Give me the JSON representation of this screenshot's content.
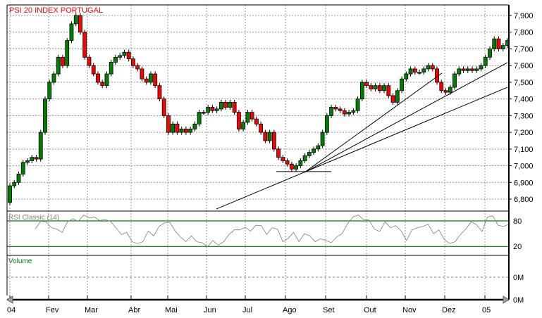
{
  "chart_data": [
    {
      "type": "candlestick",
      "title": "PSI 20 INDEX PORTUGAL",
      "x_ticks": [
        "04",
        "Fev",
        "Mar",
        "Abr",
        "Mai",
        "Jun",
        "Jul",
        "Ago",
        "Set",
        "Out",
        "Nov",
        "Dez",
        "05"
      ],
      "y_ticks": [
        "6,800",
        "6,900",
        "7,000",
        "7,100",
        "7,200",
        "7,300",
        "7,400",
        "7,500",
        "7,600",
        "7,700",
        "7,800",
        "7,900"
      ],
      "ylim": [
        6750,
        7960
      ],
      "grid": true,
      "colors": {
        "up": "#008000",
        "down": "#ff0000",
        "title": "#ff0000"
      },
      "closes": [
        6880,
        6900,
        6950,
        7020,
        7030,
        7050,
        7040,
        7200,
        7400,
        7500,
        7550,
        7650,
        7600,
        7750,
        7850,
        7900,
        7800,
        7650,
        7600,
        7550,
        7500,
        7480,
        7550,
        7620,
        7650,
        7660,
        7680,
        7640,
        7600,
        7580,
        7520,
        7500,
        7550,
        7480,
        7400,
        7300,
        7200,
        7250,
        7200,
        7220,
        7200,
        7220,
        7250,
        7320,
        7320,
        7350,
        7330,
        7340,
        7380,
        7350,
        7380,
        7320,
        7220,
        7260,
        7320,
        7280,
        7250,
        7200,
        7150,
        7200,
        7100,
        7050,
        7030,
        7010,
        6980,
        7000,
        7030,
        7060,
        7080,
        7100,
        7120,
        7200,
        7300,
        7350,
        7340,
        7330,
        7310,
        7320,
        7330,
        7400,
        7500,
        7480,
        7460,
        7480,
        7450,
        7480,
        7420,
        7380,
        7450,
        7520,
        7550,
        7580,
        7560,
        7560,
        7580,
        7600,
        7580,
        7500,
        7450,
        7440,
        7470,
        7550,
        7580,
        7570,
        7580,
        7570,
        7580,
        7600,
        7650,
        7700,
        7760,
        7700,
        7720,
        7750
      ],
      "first_open": 6780,
      "trend_lines": [
        {
          "from": [
            "Ago",
            6960
          ],
          "to": [
            "Dez",
            7555
          ]
        },
        {
          "from": [
            "Ago",
            6960
          ],
          "to": [
            "05",
            7618
          ]
        },
        {
          "from": [
            "Jun",
            6741
          ],
          "to": [
            "05",
            7470
          ]
        }
      ],
      "support_level": 6965
    },
    {
      "type": "line",
      "title": "RSI Classic (14)",
      "levels": [
        80,
        20
      ],
      "level_labels": [
        "80",
        "20"
      ],
      "ylim": [
        0,
        100
      ],
      "values": [
        61,
        79,
        78,
        64,
        61,
        53,
        78,
        85,
        79,
        94,
        87,
        89,
        81,
        83,
        79,
        64,
        48,
        53,
        31,
        27,
        31,
        56,
        45,
        67,
        75,
        77,
        56,
        42,
        31,
        45,
        31,
        29,
        19,
        34,
        23,
        31,
        48,
        59,
        59,
        65,
        56,
        70,
        69,
        48,
        64,
        61,
        31,
        39,
        53,
        31,
        50,
        45,
        31,
        38,
        34,
        29,
        42,
        50,
        73,
        89,
        94,
        83,
        82,
        61,
        55,
        78,
        64,
        69,
        56,
        34,
        59,
        64,
        67,
        72,
        50,
        59,
        36,
        27,
        31,
        48,
        61,
        78,
        71,
        55,
        89,
        92,
        70,
        67,
        72
      ],
      "colors": {
        "line": "#808080",
        "levels": "#008000"
      }
    },
    {
      "type": "bar",
      "title": "Volume",
      "y_ticks": [
        "0M",
        "0M"
      ]
    }
  ]
}
